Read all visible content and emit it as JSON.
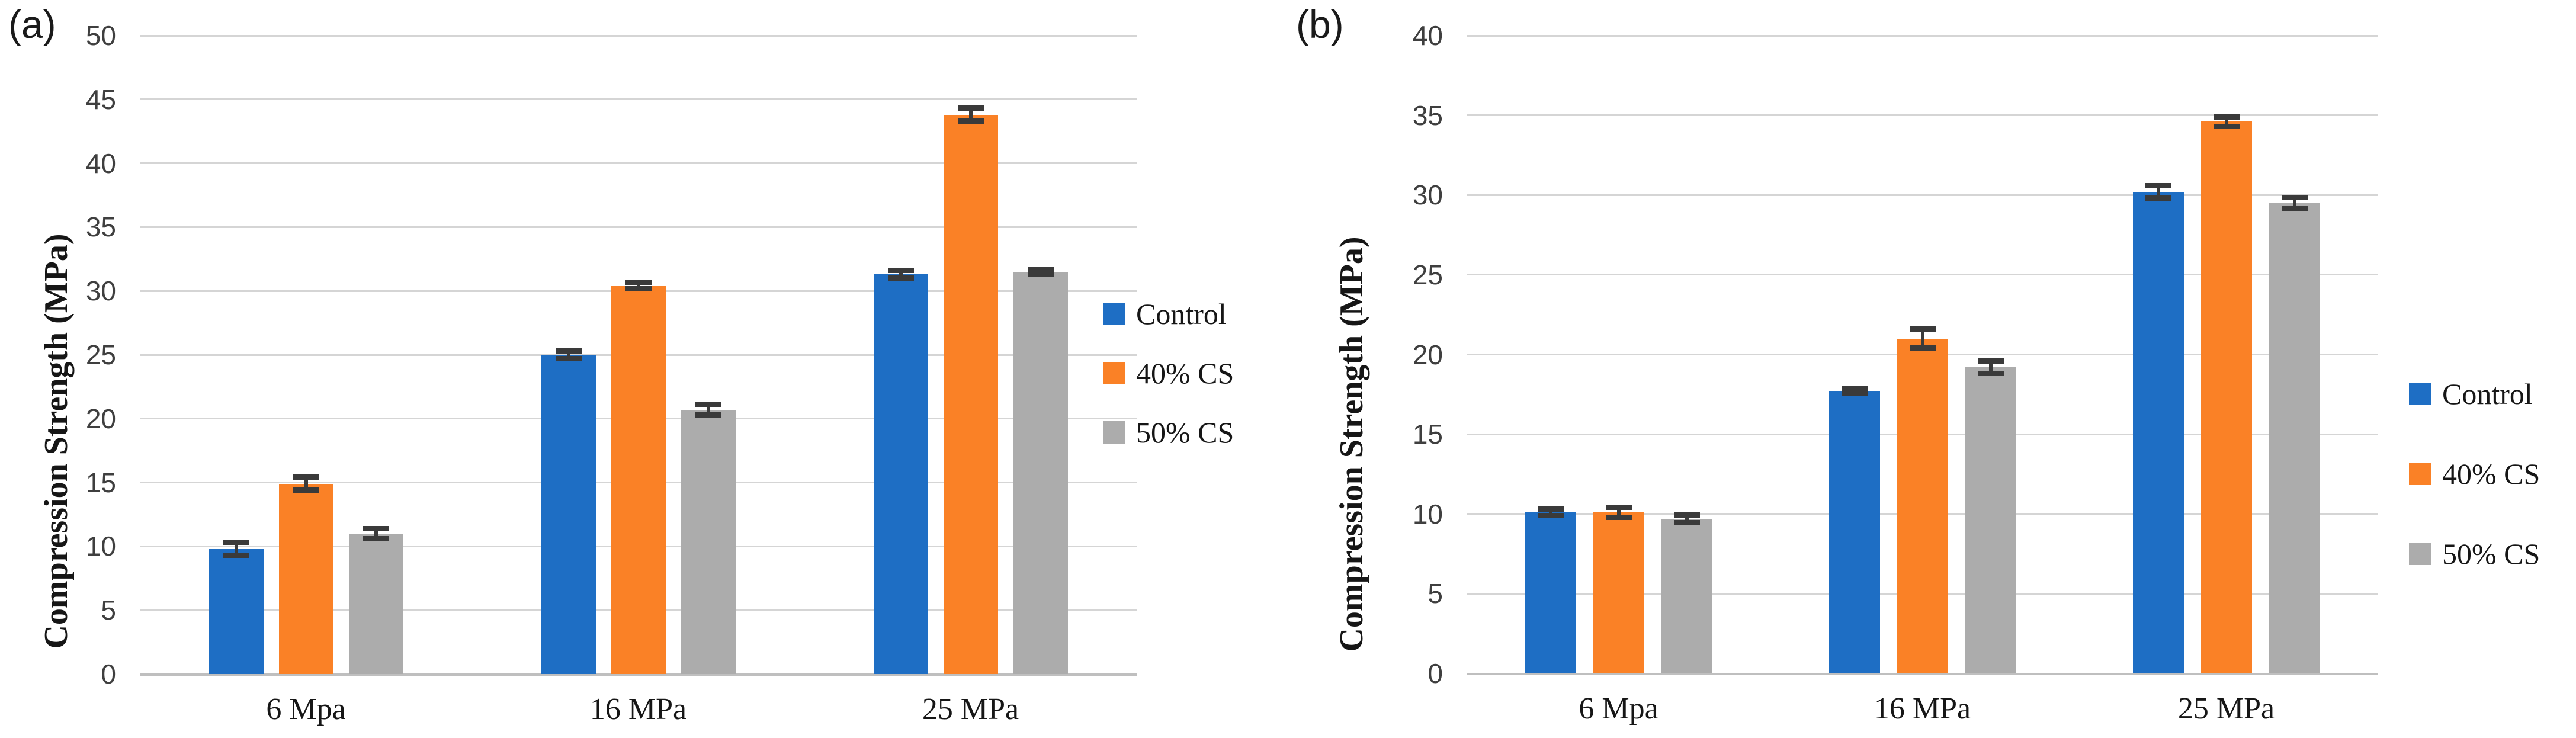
{
  "figure_caption": "Compression strength bar charts, panels (a) and (b)",
  "chart_data": [
    {
      "type": "bar",
      "panel_label": "(a)",
      "title": "",
      "xlabel": "",
      "ylabel": "Compression Strength (MPa)",
      "ylim": [
        0,
        50
      ],
      "ytick_step": 5,
      "grid": true,
      "legend_position": "right",
      "error_bars": true,
      "categories": [
        "6 Mpa",
        "16 MPa",
        "25 MPa"
      ],
      "series": [
        {
          "name": "Control",
          "color": "#1e6ec4",
          "values": [
            9.8,
            25.0,
            31.3
          ],
          "errors": [
            0.5,
            0.3,
            0.3
          ]
        },
        {
          "name": "40% CS",
          "color": "#fa8126",
          "values": [
            14.9,
            30.4,
            43.8
          ],
          "errors": [
            0.5,
            0.25,
            0.5
          ]
        },
        {
          "name": "50% CS",
          "color": "#acacac",
          "values": [
            11.0,
            20.7,
            31.5
          ],
          "errors": [
            0.4,
            0.4,
            0.15
          ]
        }
      ]
    },
    {
      "type": "bar",
      "panel_label": "(b)",
      "title": "",
      "xlabel": "",
      "ylabel": "Compression Strength (MPa)",
      "ylim": [
        0,
        40
      ],
      "ytick_step": 5,
      "grid": true,
      "legend_position": "right",
      "error_bars": true,
      "categories": [
        "6 Mpa",
        "16 MPa",
        "25 MPa"
      ],
      "series": [
        {
          "name": "Control",
          "color": "#1e6ec4",
          "values": [
            10.1,
            17.7,
            30.2
          ],
          "errors": [
            0.2,
            0.15,
            0.4
          ]
        },
        {
          "name": "40% CS",
          "color": "#fa8126",
          "values": [
            10.1,
            21.0,
            34.6
          ],
          "errors": [
            0.3,
            0.6,
            0.3
          ]
        },
        {
          "name": "50% CS",
          "color": "#acacac",
          "values": [
            9.7,
            19.2,
            29.5
          ],
          "errors": [
            0.25,
            0.4,
            0.35
          ]
        }
      ]
    }
  ]
}
